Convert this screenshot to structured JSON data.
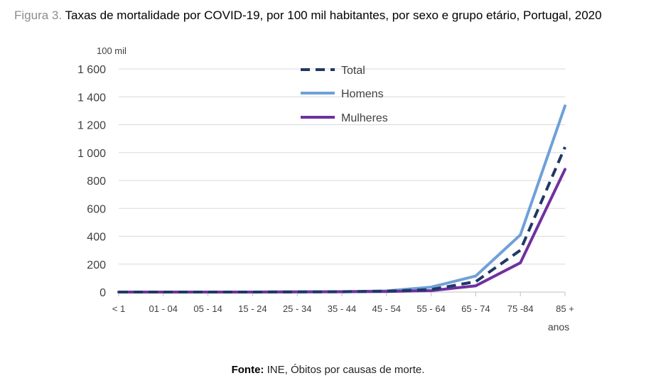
{
  "header": {
    "figure_label": "Figura 3.",
    "title": "Taxas de mortalidade por COVID-19, por 100 mil habitantes, por sexo e grupo etário, Portugal, 2020"
  },
  "footer": {
    "source_label": "Fonte:",
    "source_text": "INE, Óbitos por causas de morte."
  },
  "chart_data": {
    "type": "line",
    "title": "Taxas de mortalidade por COVID-19, por 100 mil habitantes, por sexo e grupo etário, Portugal, 2020",
    "ylabel": "100 mil",
    "xlabel": "anos",
    "ylim": [
      0,
      1600
    ],
    "yticks": [
      0,
      200,
      400,
      600,
      800,
      1000,
      1200,
      1400,
      1600
    ],
    "ytick_labels": [
      "0",
      "200",
      "400",
      "600",
      "800",
      "1 000",
      "1 200",
      "1 400",
      "1 600"
    ],
    "grid": true,
    "legend_position": "top-center",
    "categories": [
      "< 1",
      "01 - 04",
      "05 - 14",
      "15 - 24",
      "25 - 34",
      "35 - 44",
      "45 - 54",
      "55 - 64",
      "65 - 74",
      "75 -84",
      "85 +"
    ],
    "series": [
      {
        "name": "Total",
        "color": "#1f3864",
        "dash": "dashed",
        "values": [
          0,
          0,
          0,
          0,
          1,
          2,
          6,
          18,
          75,
          300,
          1040
        ]
      },
      {
        "name": "Homens",
        "color": "#6fa0d9",
        "dash": "solid",
        "values": [
          0,
          0,
          0,
          0,
          1,
          3,
          8,
          35,
          115,
          410,
          1335
        ]
      },
      {
        "name": "Mulheres",
        "color": "#7030a0",
        "dash": "solid",
        "values": [
          0,
          0,
          0,
          0,
          1,
          2,
          4,
          10,
          45,
          210,
          880
        ]
      }
    ]
  }
}
